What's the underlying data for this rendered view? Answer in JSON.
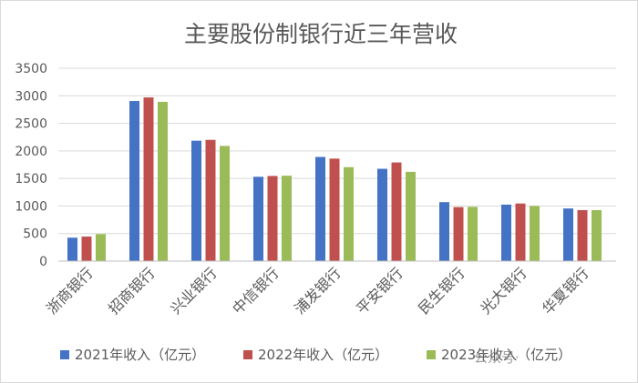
{
  "chart_data": {
    "type": "bar",
    "title": "主要股份制银行近三年营收",
    "categories": [
      "浙商银行",
      "招商银行",
      "兴业银行",
      "中信银行",
      "浦发银行",
      "平安银行",
      "民生银行",
      "光大银行",
      "华夏银行"
    ],
    "series": [
      {
        "name": "2021年收入（亿元）",
        "color": "#4472c4",
        "values": [
          425,
          2905,
          2185,
          1530,
          1890,
          1675,
          1070,
          1025,
          955
        ]
      },
      {
        "name": "2022年收入（亿元）",
        "color": "#c0504d",
        "values": [
          445,
          2970,
          2200,
          1545,
          1860,
          1790,
          980,
          1045,
          925
        ]
      },
      {
        "name": "2023年收入（亿元）",
        "color": "#9bbb59",
        "values": [
          490,
          2890,
          2090,
          1550,
          1705,
          1620,
          985,
          1000,
          925
        ]
      }
    ],
    "ylim": [
      0,
      3500
    ],
    "yticks": [
      0,
      500,
      1000,
      1500,
      2000,
      2500,
      3000,
      3500
    ],
    "grid": true,
    "legend": "bottom"
  },
  "watermark": "公众号·"
}
